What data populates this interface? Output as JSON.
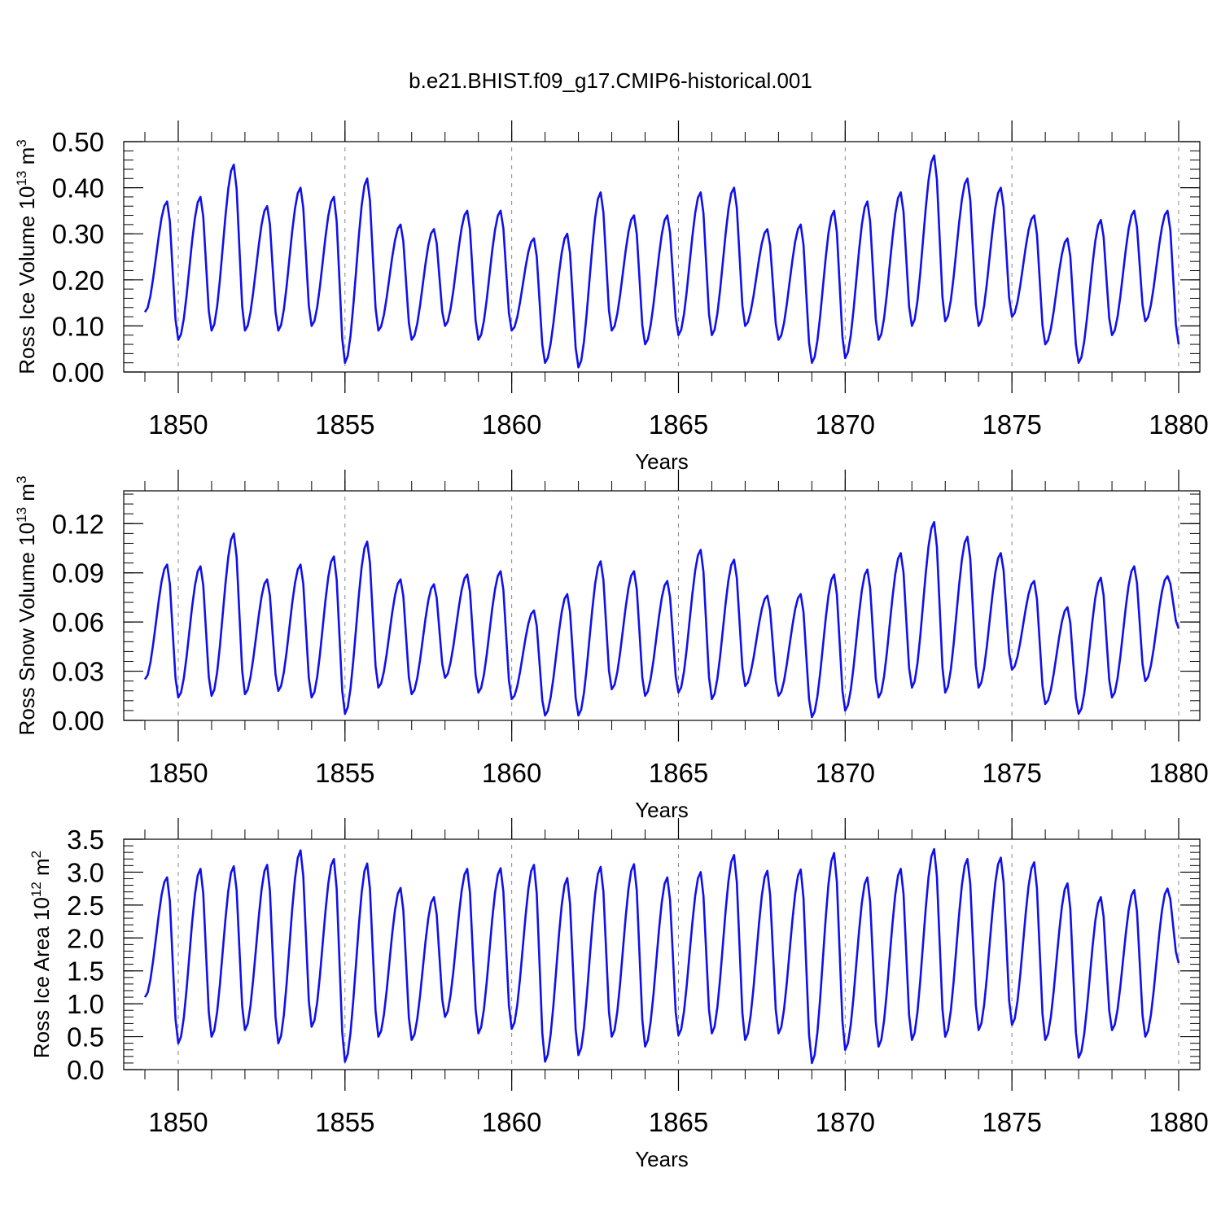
{
  "title": "b.e21.BHIST.f09_g17.CMIP6-historical.001",
  "line_color": "#1010ee",
  "chart_data": [
    {
      "type": "line",
      "ylabel_main": "Ross Ice Volume 10",
      "ylabel_exp": "13",
      "ylabel_unit": " m",
      "ylabel_unit_exp": "3",
      "xlabel": "Years",
      "xlim": [
        1849,
        1880
      ],
      "ylim": [
        0,
        0.5
      ],
      "yticks": [
        0.0,
        0.1,
        0.2,
        0.3,
        0.4,
        0.5
      ],
      "ytick_labels": [
        "0.00",
        "0.10",
        "0.20",
        "0.30",
        "0.40",
        "0.50"
      ],
      "xticks": [
        1850,
        1855,
        1860,
        1865,
        1870,
        1875,
        1880
      ],
      "xtick_labels": [
        "1850",
        "1855",
        "1860",
        "1865",
        "1870",
        "1875",
        "1880"
      ],
      "series": [
        {
          "peaks": [
            0.37,
            0.38,
            0.45,
            0.36,
            0.4,
            0.38,
            0.42,
            0.32,
            0.31,
            0.35,
            0.35,
            0.29,
            0.3,
            0.39,
            0.34,
            0.34,
            0.39,
            0.4,
            0.31,
            0.32,
            0.35,
            0.37,
            0.39,
            0.47,
            0.42,
            0.4,
            0.34,
            0.29,
            0.33,
            0.35,
            0.35
          ],
          "troughs": [
            0.13,
            0.07,
            0.09,
            0.09,
            0.09,
            0.1,
            0.02,
            0.09,
            0.07,
            0.1,
            0.07,
            0.09,
            0.02,
            0.01,
            0.09,
            0.06,
            0.08,
            0.08,
            0.1,
            0.07,
            0.02,
            0.03,
            0.07,
            0.1,
            0.11,
            0.1,
            0.12,
            0.06,
            0.02,
            0.08,
            0.11,
            0.06
          ]
        }
      ]
    },
    {
      "type": "line",
      "ylabel_main": "Ross Snow Volume 10",
      "ylabel_exp": "13",
      "ylabel_unit": " m",
      "ylabel_unit_exp": "3",
      "xlabel": "Years",
      "xlim": [
        1849,
        1880
      ],
      "ylim": [
        0,
        0.14
      ],
      "yticks": [
        0.0,
        0.03,
        0.06,
        0.09,
        0.12
      ],
      "ytick_labels": [
        "0.00",
        "0.03",
        "0.06",
        "0.09",
        "0.12"
      ],
      "xticks": [
        1850,
        1855,
        1860,
        1865,
        1870,
        1875,
        1880
      ],
      "xtick_labels": [
        "1850",
        "1855",
        "1860",
        "1865",
        "1870",
        "1875",
        "1880"
      ],
      "series": [
        {
          "peaks": [
            0.095,
            0.094,
            0.114,
            0.086,
            0.095,
            0.1,
            0.109,
            0.086,
            0.083,
            0.089,
            0.091,
            0.067,
            0.077,
            0.097,
            0.091,
            0.085,
            0.104,
            0.098,
            0.076,
            0.077,
            0.089,
            0.092,
            0.102,
            0.121,
            0.112,
            0.102,
            0.085,
            0.069,
            0.087,
            0.094,
            0.088
          ],
          "troughs": [
            0.025,
            0.014,
            0.015,
            0.016,
            0.018,
            0.014,
            0.004,
            0.02,
            0.016,
            0.026,
            0.017,
            0.013,
            0.003,
            0.003,
            0.019,
            0.015,
            0.017,
            0.013,
            0.021,
            0.015,
            0.002,
            0.006,
            0.014,
            0.02,
            0.017,
            0.02,
            0.031,
            0.01,
            0.004,
            0.014,
            0.024,
            0.056
          ]
        }
      ]
    },
    {
      "type": "line",
      "ylabel_main": "Ross Ice Area 10",
      "ylabel_exp": "12",
      "ylabel_unit": " m",
      "ylabel_unit_exp": "2",
      "xlabel": "Years",
      "xlim": [
        1849,
        1880
      ],
      "ylim": [
        0,
        3.5
      ],
      "yticks": [
        0.0,
        0.5,
        1.0,
        1.5,
        2.0,
        2.5,
        3.0,
        3.5
      ],
      "ytick_labels": [
        "0.0",
        "0.5",
        "1.0",
        "1.5",
        "2.0",
        "2.5",
        "3.0",
        "3.5"
      ],
      "xticks": [
        1850,
        1855,
        1860,
        1865,
        1870,
        1875,
        1880
      ],
      "xtick_labels": [
        "1850",
        "1855",
        "1860",
        "1865",
        "1870",
        "1875",
        "1880"
      ],
      "series": [
        {
          "peaks": [
            2.92,
            3.05,
            3.09,
            3.11,
            3.33,
            3.2,
            3.13,
            2.76,
            2.62,
            3.05,
            3.06,
            3.11,
            2.91,
            3.08,
            3.12,
            2.92,
            3.0,
            3.26,
            3.02,
            3.04,
            3.29,
            2.92,
            3.05,
            3.35,
            3.2,
            3.22,
            3.15,
            2.83,
            2.62,
            2.73,
            2.75
          ],
          "troughs": [
            1.1,
            0.4,
            0.5,
            0.6,
            0.4,
            0.65,
            0.12,
            0.5,
            0.45,
            0.8,
            0.55,
            0.62,
            0.12,
            0.22,
            0.5,
            0.35,
            0.52,
            0.55,
            0.45,
            0.55,
            0.1,
            0.3,
            0.35,
            0.45,
            0.5,
            0.6,
            0.68,
            0.45,
            0.18,
            0.6,
            0.5,
            1.62
          ]
        }
      ]
    }
  ]
}
